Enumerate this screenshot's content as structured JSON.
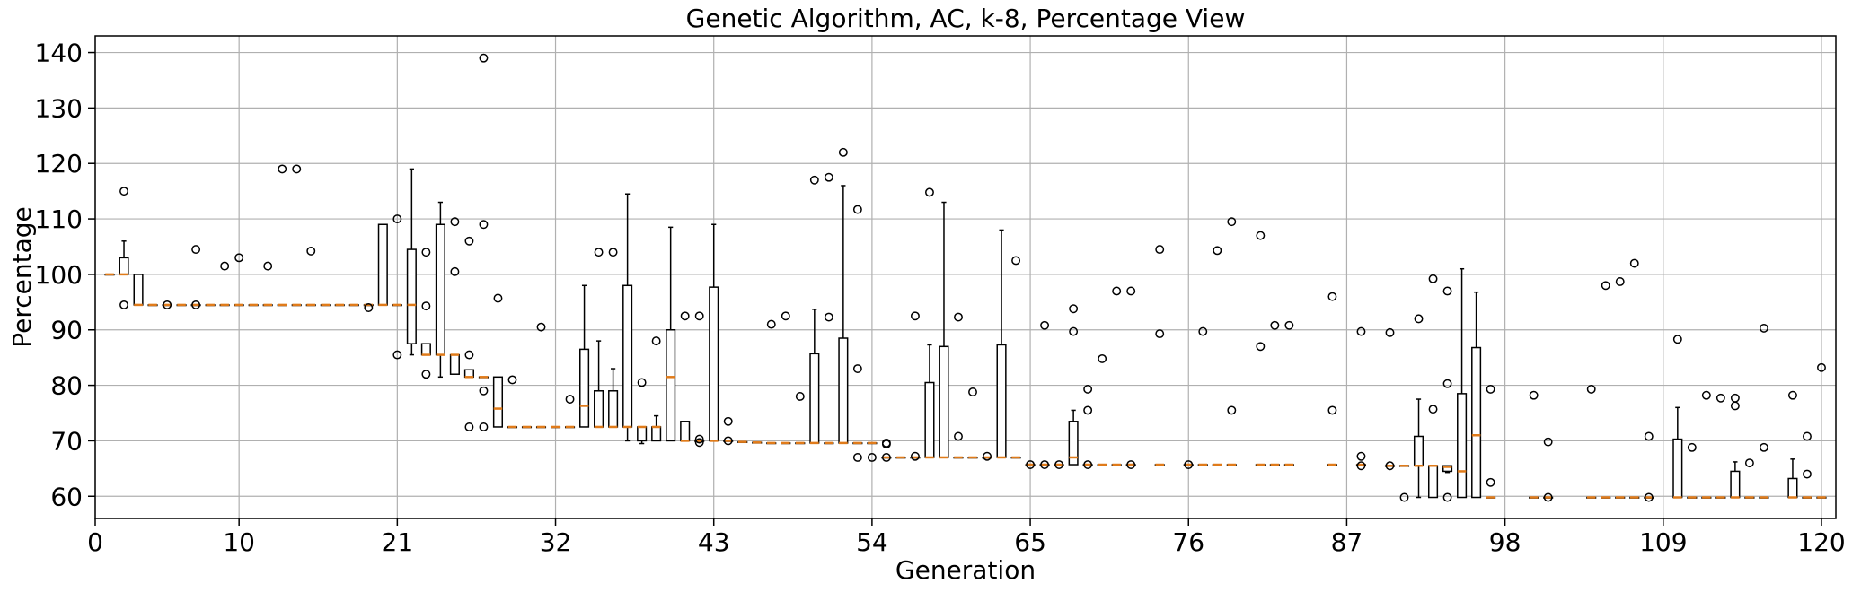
{
  "chart_data": {
    "type": "box",
    "title": "Genetic Algorithm, AC, k-8, Percentage View",
    "xlabel": "Generation",
    "ylabel": "Percentage",
    "xlim": [
      0,
      121
    ],
    "ylim": [
      56,
      143
    ],
    "xticks": [
      0,
      10,
      21,
      32,
      43,
      54,
      65,
      76,
      87,
      98,
      109,
      120
    ],
    "yticks": [
      60,
      70,
      80,
      90,
      100,
      110,
      120,
      130,
      140
    ],
    "grid": true,
    "colors": {
      "median": "#e07b1a",
      "box": "#000000",
      "grid": "#b0b0b0"
    },
    "boxes": [
      {
        "x": 1,
        "q1": 100,
        "med": 100,
        "q3": 100,
        "lo": 100,
        "hi": 100,
        "fliers": []
      },
      {
        "x": 2,
        "q1": 100,
        "med": 100,
        "q3": 103,
        "lo": 100,
        "hi": 106,
        "fliers": [
          115,
          94.5
        ]
      },
      {
        "x": 3,
        "q1": 94.5,
        "med": 94.5,
        "q3": 100,
        "lo": 94.5,
        "hi": 100,
        "fliers": []
      },
      {
        "x": 4,
        "q1": 94.5,
        "med": 94.5,
        "q3": 94.5,
        "lo": 94.5,
        "hi": 94.5,
        "fliers": []
      },
      {
        "x": 5,
        "q1": 94.5,
        "med": 94.5,
        "q3": 94.5,
        "lo": 94.5,
        "hi": 94.5,
        "fliers": [
          94.5
        ]
      },
      {
        "x": 6,
        "q1": 94.5,
        "med": 94.5,
        "q3": 94.5,
        "lo": 94.5,
        "hi": 94.5,
        "fliers": []
      },
      {
        "x": 7,
        "q1": 94.5,
        "med": 94.5,
        "q3": 94.5,
        "lo": 94.5,
        "hi": 94.5,
        "fliers": [
          104.5,
          94.5
        ]
      },
      {
        "x": 8,
        "q1": 94.5,
        "med": 94.5,
        "q3": 94.5,
        "lo": 94.5,
        "hi": 94.5,
        "fliers": []
      },
      {
        "x": 9,
        "q1": 94.5,
        "med": 94.5,
        "q3": 94.5,
        "lo": 94.5,
        "hi": 94.5,
        "fliers": [
          101.5
        ]
      },
      {
        "x": 10,
        "q1": 94.5,
        "med": 94.5,
        "q3": 94.5,
        "lo": 94.5,
        "hi": 94.5,
        "fliers": [
          103
        ]
      },
      {
        "x": 11,
        "q1": 94.5,
        "med": 94.5,
        "q3": 94.5,
        "lo": 94.5,
        "hi": 94.5,
        "fliers": []
      },
      {
        "x": 12,
        "q1": 94.5,
        "med": 94.5,
        "q3": 94.5,
        "lo": 94.5,
        "hi": 94.5,
        "fliers": [
          101.5
        ]
      },
      {
        "x": 13,
        "q1": 94.5,
        "med": 94.5,
        "q3": 94.5,
        "lo": 94.5,
        "hi": 94.5,
        "fliers": [
          119
        ]
      },
      {
        "x": 14,
        "q1": 94.5,
        "med": 94.5,
        "q3": 94.5,
        "lo": 94.5,
        "hi": 94.5,
        "fliers": [
          119
        ]
      },
      {
        "x": 15,
        "q1": 94.5,
        "med": 94.5,
        "q3": 94.5,
        "lo": 94.5,
        "hi": 94.5,
        "fliers": [
          104.2
        ]
      },
      {
        "x": 16,
        "q1": 94.5,
        "med": 94.5,
        "q3": 94.5,
        "lo": 94.5,
        "hi": 94.5,
        "fliers": []
      },
      {
        "x": 17,
        "q1": 94.5,
        "med": 94.5,
        "q3": 94.5,
        "lo": 94.5,
        "hi": 94.5,
        "fliers": []
      },
      {
        "x": 18,
        "q1": 94.5,
        "med": 94.5,
        "q3": 94.5,
        "lo": 94.5,
        "hi": 94.5,
        "fliers": []
      },
      {
        "x": 19,
        "q1": 94.5,
        "med": 94.5,
        "q3": 94.5,
        "lo": 94.5,
        "hi": 94.5,
        "fliers": [
          94
        ]
      },
      {
        "x": 20,
        "q1": 94.5,
        "med": 94.5,
        "q3": 109,
        "lo": 94.5,
        "hi": 109,
        "fliers": []
      },
      {
        "x": 21,
        "q1": 94.5,
        "med": 94.5,
        "q3": 94.5,
        "lo": 94.5,
        "hi": 94.5,
        "fliers": [
          110,
          85.5
        ]
      },
      {
        "x": 22,
        "q1": 87.5,
        "med": 94.5,
        "q3": 104.5,
        "lo": 85.5,
        "hi": 119,
        "fliers": []
      },
      {
        "x": 23,
        "q1": 85.5,
        "med": 85.5,
        "q3": 87.5,
        "lo": 85.5,
        "hi": 87.5,
        "fliers": [
          104,
          94.3,
          82
        ]
      },
      {
        "x": 24,
        "q1": 85.5,
        "med": 85.5,
        "q3": 109,
        "lo": 81.5,
        "hi": 113,
        "fliers": []
      },
      {
        "x": 25,
        "q1": 82,
        "med": 85.5,
        "q3": 85.5,
        "lo": 82,
        "hi": 85.5,
        "fliers": [
          109.5,
          100.5
        ]
      },
      {
        "x": 26,
        "q1": 81.5,
        "med": 81.5,
        "q3": 82.8,
        "lo": 81.5,
        "hi": 82.8,
        "fliers": [
          106,
          85.5,
          72.5
        ]
      },
      {
        "x": 27,
        "q1": 81.5,
        "med": 81.5,
        "q3": 81.5,
        "lo": 81.5,
        "hi": 81.5,
        "fliers": [
          139,
          109,
          79,
          72.5
        ]
      },
      {
        "x": 28,
        "q1": 72.5,
        "med": 75.8,
        "q3": 81.5,
        "lo": 72.5,
        "hi": 81.5,
        "fliers": [
          95.7
        ]
      },
      {
        "x": 29,
        "q1": 72.5,
        "med": 72.5,
        "q3": 72.5,
        "lo": 72.5,
        "hi": 72.5,
        "fliers": [
          81
        ]
      },
      {
        "x": 30,
        "q1": 72.5,
        "med": 72.5,
        "q3": 72.5,
        "lo": 72.5,
        "hi": 72.5,
        "fliers": []
      },
      {
        "x": 31,
        "q1": 72.5,
        "med": 72.5,
        "q3": 72.5,
        "lo": 72.5,
        "hi": 72.5,
        "fliers": [
          90.5
        ]
      },
      {
        "x": 32,
        "q1": 72.5,
        "med": 72.5,
        "q3": 72.5,
        "lo": 72.5,
        "hi": 72.5,
        "fliers": []
      },
      {
        "x": 33,
        "q1": 72.5,
        "med": 72.5,
        "q3": 72.5,
        "lo": 72.5,
        "hi": 72.5,
        "fliers": [
          77.5
        ]
      },
      {
        "x": 34,
        "q1": 72.5,
        "med": 76.3,
        "q3": 86.5,
        "lo": 72.5,
        "hi": 98,
        "fliers": []
      },
      {
        "x": 35,
        "q1": 72.5,
        "med": 72.5,
        "q3": 79,
        "lo": 72.5,
        "hi": 88,
        "fliers": [
          104
        ]
      },
      {
        "x": 36,
        "q1": 72.5,
        "med": 72.5,
        "q3": 79,
        "lo": 72.5,
        "hi": 83,
        "fliers": [
          104
        ]
      },
      {
        "x": 37,
        "q1": 72.5,
        "med": 72.5,
        "q3": 98,
        "lo": 70,
        "hi": 114.5,
        "fliers": []
      },
      {
        "x": 38,
        "q1": 70,
        "med": 72.5,
        "q3": 72.5,
        "lo": 69.5,
        "hi": 72.5,
        "fliers": [
          80.5
        ]
      },
      {
        "x": 39,
        "q1": 70,
        "med": 72.5,
        "q3": 72.5,
        "lo": 70,
        "hi": 74.5,
        "fliers": [
          88
        ]
      },
      {
        "x": 40,
        "q1": 70,
        "med": 81.5,
        "q3": 90,
        "lo": 70,
        "hi": 108.5,
        "fliers": []
      },
      {
        "x": 41,
        "q1": 70,
        "med": 70,
        "q3": 73.5,
        "lo": 70,
        "hi": 73.5,
        "fliers": [
          92.5
        ]
      },
      {
        "x": 42,
        "q1": 70,
        "med": 70,
        "q3": 70,
        "lo": 70,
        "hi": 70,
        "fliers": [
          92.5,
          70.3,
          69.7
        ]
      },
      {
        "x": 43,
        "q1": 70,
        "med": 70,
        "q3": 97.7,
        "lo": 70,
        "hi": 109,
        "fliers": []
      },
      {
        "x": 44,
        "q1": 70,
        "med": 70,
        "q3": 70,
        "lo": 70,
        "hi": 70,
        "fliers": [
          73.5,
          70
        ]
      },
      {
        "x": 45,
        "q1": 69.8,
        "med": 69.8,
        "q3": 69.8,
        "lo": 69.8,
        "hi": 69.8,
        "fliers": []
      },
      {
        "x": 46,
        "q1": 69.7,
        "med": 69.7,
        "q3": 69.7,
        "lo": 69.7,
        "hi": 69.7,
        "fliers": []
      },
      {
        "x": 47,
        "q1": 69.6,
        "med": 69.6,
        "q3": 69.6,
        "lo": 69.6,
        "hi": 69.6,
        "fliers": [
          91
        ]
      },
      {
        "x": 48,
        "q1": 69.6,
        "med": 69.6,
        "q3": 69.6,
        "lo": 69.6,
        "hi": 69.6,
        "fliers": [
          92.5
        ]
      },
      {
        "x": 49,
        "q1": 69.6,
        "med": 69.6,
        "q3": 69.6,
        "lo": 69.6,
        "hi": 69.6,
        "fliers": [
          78
        ]
      },
      {
        "x": 50,
        "q1": 69.6,
        "med": 69.6,
        "q3": 85.7,
        "lo": 69.6,
        "hi": 93.7,
        "fliers": [
          117
        ]
      },
      {
        "x": 51,
        "q1": 69.6,
        "med": 69.6,
        "q3": 69.6,
        "lo": 69.6,
        "hi": 69.6,
        "fliers": [
          117.5,
          92.3
        ]
      },
      {
        "x": 52,
        "q1": 69.6,
        "med": 69.6,
        "q3": 88.5,
        "lo": 69.6,
        "hi": 116,
        "fliers": [
          122
        ]
      },
      {
        "x": 53,
        "q1": 69.6,
        "med": 69.6,
        "q3": 69.6,
        "lo": 69.6,
        "hi": 69.6,
        "fliers": [
          111.7,
          83,
          67
        ]
      },
      {
        "x": 54,
        "q1": 69.6,
        "med": 69.6,
        "q3": 69.6,
        "lo": 69.6,
        "hi": 69.6,
        "fliers": [
          67
        ]
      },
      {
        "x": 55,
        "q1": 67,
        "med": 67,
        "q3": 67,
        "lo": 67,
        "hi": 67,
        "fliers": [
          69.6,
          69.4,
          67
        ]
      },
      {
        "x": 56,
        "q1": 67,
        "med": 67,
        "q3": 67,
        "lo": 67,
        "hi": 67,
        "fliers": []
      },
      {
        "x": 57,
        "q1": 67,
        "med": 67,
        "q3": 67,
        "lo": 67,
        "hi": 67,
        "fliers": [
          92.5,
          67.2
        ]
      },
      {
        "x": 58,
        "q1": 67,
        "med": 67,
        "q3": 80.5,
        "lo": 67,
        "hi": 87.3,
        "fliers": [
          114.8
        ]
      },
      {
        "x": 59,
        "q1": 67,
        "med": 67,
        "q3": 87,
        "lo": 67,
        "hi": 113,
        "fliers": []
      },
      {
        "x": 60,
        "q1": 67,
        "med": 67,
        "q3": 67,
        "lo": 67,
        "hi": 67,
        "fliers": [
          92.3,
          70.8
        ]
      },
      {
        "x": 61,
        "q1": 67,
        "med": 67,
        "q3": 67,
        "lo": 67,
        "hi": 67,
        "fliers": [
          78.8
        ]
      },
      {
        "x": 62,
        "q1": 67,
        "med": 67,
        "q3": 67,
        "lo": 67,
        "hi": 67,
        "fliers": [
          67.2
        ]
      },
      {
        "x": 63,
        "q1": 67,
        "med": 67,
        "q3": 87.3,
        "lo": 67,
        "hi": 108,
        "fliers": []
      },
      {
        "x": 64,
        "q1": 67,
        "med": 67,
        "q3": 67,
        "lo": 67,
        "hi": 67,
        "fliers": [
          102.5
        ]
      },
      {
        "x": 65,
        "q1": 65.7,
        "med": 65.7,
        "q3": 65.7,
        "lo": 65.7,
        "hi": 65.7,
        "fliers": [
          65.7
        ]
      },
      {
        "x": 66,
        "q1": 65.7,
        "med": 65.7,
        "q3": 65.7,
        "lo": 65.7,
        "hi": 65.7,
        "fliers": [
          90.8,
          65.7
        ]
      },
      {
        "x": 67,
        "q1": 65.7,
        "med": 65.7,
        "q3": 65.7,
        "lo": 65.7,
        "hi": 65.7,
        "fliers": [
          65.7
        ]
      },
      {
        "x": 68,
        "q1": 65.7,
        "med": 67,
        "q3": 73.5,
        "lo": 65.7,
        "hi": 75.5,
        "fliers": [
          93.8,
          89.7
        ]
      },
      {
        "x": 69,
        "q1": 65.7,
        "med": 65.7,
        "q3": 65.7,
        "lo": 65.7,
        "hi": 65.7,
        "fliers": [
          79.3,
          75.5,
          65.7
        ]
      },
      {
        "x": 70,
        "q1": 65.7,
        "med": 65.7,
        "q3": 65.7,
        "lo": 65.7,
        "hi": 65.7,
        "fliers": [
          84.8
        ]
      },
      {
        "x": 71,
        "q1": 65.7,
        "med": 65.7,
        "q3": 65.7,
        "lo": 65.7,
        "hi": 65.7,
        "fliers": [
          97
        ]
      },
      {
        "x": 72,
        "q1": 65.7,
        "med": 65.7,
        "q3": 65.7,
        "lo": 65.7,
        "hi": 65.7,
        "fliers": [
          97,
          65.7
        ]
      },
      {
        "x": 74,
        "q1": 65.7,
        "med": 65.7,
        "q3": 65.7,
        "lo": 65.7,
        "hi": 65.7,
        "fliers": [
          104.5,
          89.3
        ]
      },
      {
        "x": 76,
        "q1": 65.7,
        "med": 65.7,
        "q3": 65.7,
        "lo": 65.7,
        "hi": 65.7,
        "fliers": [
          65.7
        ]
      },
      {
        "x": 77,
        "q1": 65.7,
        "med": 65.7,
        "q3": 65.7,
        "lo": 65.7,
        "hi": 65.7,
        "fliers": [
          89.7
        ]
      },
      {
        "x": 78,
        "q1": 65.7,
        "med": 65.7,
        "q3": 65.7,
        "lo": 65.7,
        "hi": 65.7,
        "fliers": [
          104.3
        ]
      },
      {
        "x": 79,
        "q1": 65.7,
        "med": 65.7,
        "q3": 65.7,
        "lo": 65.7,
        "hi": 65.7,
        "fliers": [
          109.5,
          75.5
        ]
      },
      {
        "x": 81,
        "q1": 65.7,
        "med": 65.7,
        "q3": 65.7,
        "lo": 65.7,
        "hi": 65.7,
        "fliers": [
          107,
          87
        ]
      },
      {
        "x": 82,
        "q1": 65.7,
        "med": 65.7,
        "q3": 65.7,
        "lo": 65.7,
        "hi": 65.7,
        "fliers": [
          90.8
        ]
      },
      {
        "x": 83,
        "q1": 65.7,
        "med": 65.7,
        "q3": 65.7,
        "lo": 65.7,
        "hi": 65.7,
        "fliers": [
          90.8
        ]
      },
      {
        "x": 86,
        "q1": 65.7,
        "med": 65.7,
        "q3": 65.7,
        "lo": 65.7,
        "hi": 65.7,
        "fliers": [
          96,
          75.5
        ]
      },
      {
        "x": 88,
        "q1": 65.7,
        "med": 65.7,
        "q3": 65.7,
        "lo": 65.7,
        "hi": 65.7,
        "fliers": [
          89.7,
          67.2,
          65.5
        ]
      },
      {
        "x": 90,
        "q1": 65.5,
        "med": 65.5,
        "q3": 65.5,
        "lo": 65.5,
        "hi": 65.5,
        "fliers": [
          89.5,
          65.5
        ]
      },
      {
        "x": 91,
        "q1": 65.5,
        "med": 65.5,
        "q3": 65.5,
        "lo": 65.5,
        "hi": 65.5,
        "fliers": [
          59.8
        ]
      },
      {
        "x": 92,
        "q1": 65.5,
        "med": 65.5,
        "q3": 70.8,
        "lo": 59.8,
        "hi": 77.5,
        "fliers": [
          92
        ]
      },
      {
        "x": 93,
        "q1": 59.8,
        "med": 65.5,
        "q3": 65.5,
        "lo": 59.8,
        "hi": 65.5,
        "fliers": [
          99.2,
          75.7
        ]
      },
      {
        "x": 94,
        "q1": 64.5,
        "med": 65.3,
        "q3": 65.5,
        "lo": 64.3,
        "hi": 65.5,
        "fliers": [
          97,
          80.3,
          59.8
        ]
      },
      {
        "x": 95,
        "q1": 59.8,
        "med": 64.5,
        "q3": 78.5,
        "lo": 59.8,
        "hi": 101,
        "fliers": []
      },
      {
        "x": 96,
        "q1": 59.8,
        "med": 71,
        "q3": 86.8,
        "lo": 59.8,
        "hi": 96.8,
        "fliers": []
      },
      {
        "x": 97,
        "q1": 59.8,
        "med": 59.8,
        "q3": 59.8,
        "lo": 59.8,
        "hi": 59.8,
        "fliers": [
          79.3,
          62.5
        ]
      },
      {
        "x": 100,
        "q1": 59.8,
        "med": 59.8,
        "q3": 59.8,
        "lo": 59.8,
        "hi": 59.8,
        "fliers": [
          78.2
        ]
      },
      {
        "x": 101,
        "q1": 59.8,
        "med": 59.8,
        "q3": 59.8,
        "lo": 59.8,
        "hi": 59.8,
        "fliers": [
          69.8,
          59.8
        ]
      },
      {
        "x": 104,
        "q1": 59.8,
        "med": 59.8,
        "q3": 59.8,
        "lo": 59.8,
        "hi": 59.8,
        "fliers": [
          79.3
        ]
      },
      {
        "x": 105,
        "q1": 59.8,
        "med": 59.8,
        "q3": 59.8,
        "lo": 59.8,
        "hi": 59.8,
        "fliers": [
          98
        ]
      },
      {
        "x": 106,
        "q1": 59.8,
        "med": 59.8,
        "q3": 59.8,
        "lo": 59.8,
        "hi": 59.8,
        "fliers": [
          98.7
        ]
      },
      {
        "x": 107,
        "q1": 59.8,
        "med": 59.8,
        "q3": 59.8,
        "lo": 59.8,
        "hi": 59.8,
        "fliers": [
          102
        ]
      },
      {
        "x": 108,
        "q1": 59.8,
        "med": 59.8,
        "q3": 59.8,
        "lo": 59.8,
        "hi": 59.8,
        "fliers": [
          70.8,
          59.8
        ]
      },
      {
        "x": 110,
        "q1": 59.8,
        "med": 59.8,
        "q3": 70.3,
        "lo": 59.8,
        "hi": 76,
        "fliers": [
          88.3
        ]
      },
      {
        "x": 111,
        "q1": 59.8,
        "med": 59.8,
        "q3": 59.8,
        "lo": 59.8,
        "hi": 59.8,
        "fliers": [
          68.8
        ]
      },
      {
        "x": 112,
        "q1": 59.8,
        "med": 59.8,
        "q3": 59.8,
        "lo": 59.8,
        "hi": 59.8,
        "fliers": [
          78.2
        ]
      },
      {
        "x": 113,
        "q1": 59.8,
        "med": 59.8,
        "q3": 59.8,
        "lo": 59.8,
        "hi": 59.8,
        "fliers": [
          77.7
        ]
      },
      {
        "x": 114,
        "q1": 59.8,
        "med": 59.8,
        "q3": 64.5,
        "lo": 59.8,
        "hi": 66.2,
        "fliers": [
          77.7,
          76.3
        ]
      },
      {
        "x": 115,
        "q1": 59.8,
        "med": 59.8,
        "q3": 59.8,
        "lo": 59.8,
        "hi": 59.8,
        "fliers": [
          66
        ]
      },
      {
        "x": 116,
        "q1": 59.8,
        "med": 59.8,
        "q3": 59.8,
        "lo": 59.8,
        "hi": 59.8,
        "fliers": [
          90.3,
          68.8
        ]
      },
      {
        "x": 118,
        "q1": 59.8,
        "med": 59.8,
        "q3": 63.2,
        "lo": 59.8,
        "hi": 66.7,
        "fliers": [
          78.2
        ]
      },
      {
        "x": 119,
        "q1": 59.8,
        "med": 59.8,
        "q3": 59.8,
        "lo": 59.8,
        "hi": 59.8,
        "fliers": [
          70.8,
          64
        ]
      },
      {
        "x": 120,
        "q1": 59.8,
        "med": 59.8,
        "q3": 59.8,
        "lo": 59.8,
        "hi": 59.8,
        "fliers": [
          83.2
        ]
      }
    ]
  }
}
